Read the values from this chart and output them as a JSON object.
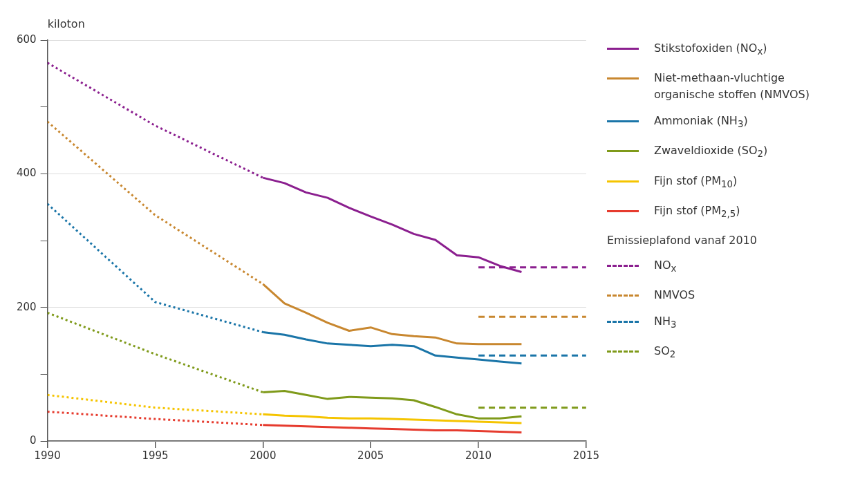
{
  "chart_data": {
    "type": "line",
    "ylabel": "kiloton",
    "xlim": [
      1990,
      2015
    ],
    "xticks": [
      1990,
      1995,
      2000,
      2005,
      2010,
      2015
    ],
    "ylim": [
      0,
      600
    ],
    "yticks": [
      0,
      {
        "value": 100,
        "label": null
      },
      200,
      {
        "value": 300,
        "label": null
      },
      400,
      {
        "value": 500,
        "label": null
      },
      600
    ],
    "grid": "y",
    "legend": "right",
    "legend_title": "Emissieplafond vanaf 2010",
    "marker": "none",
    "series": [
      {
        "name": "Stikstofoxiden (NO$_{x}$)",
        "color": "#8b1f8f",
        "line_style": "solid",
        "x": [
          2000,
          2001,
          2002,
          2003,
          2004,
          2005,
          2006,
          2007,
          2008,
          2009,
          2010,
          2011,
          2012
        ],
        "values": [
          394,
          386,
          372,
          364,
          349,
          336,
          324,
          310,
          301,
          278,
          275,
          262,
          253
        ]
      },
      {
        "name": "Niet-methaan-vluchtige organische stoffen (NMVOS)",
        "color": "#c8872f",
        "line_style": "solid",
        "x": [
          2000,
          2001,
          2002,
          2003,
          2004,
          2005,
          2006,
          2007,
          2008,
          2009,
          2010,
          2011,
          2012
        ],
        "values": [
          235,
          206,
          192,
          177,
          165,
          170,
          160,
          157,
          155,
          146,
          145,
          145,
          145
        ]
      },
      {
        "name": "Ammoniak (NH$_{3}$)",
        "color": "#1a75a8",
        "line_style": "solid",
        "x": [
          2000,
          2001,
          2002,
          2003,
          2004,
          2005,
          2006,
          2007,
          2008,
          2009,
          2010,
          2011,
          2012
        ],
        "values": [
          163,
          159,
          152,
          146,
          144,
          142,
          144,
          142,
          128,
          125,
          122,
          119,
          116
        ]
      },
      {
        "name": "Zwaveldioxide (SO$_{2}$)",
        "color": "#7f9a1a",
        "line_style": "solid",
        "x": [
          2000,
          2001,
          2002,
          2003,
          2004,
          2005,
          2006,
          2007,
          2008,
          2009,
          2010,
          2011,
          2012
        ],
        "values": [
          73,
          75,
          69,
          63,
          66,
          65,
          64,
          61,
          51,
          40,
          34,
          34,
          37
        ]
      },
      {
        "name": "Fijn stof (PM$_{10}$)",
        "color": "#f5c400",
        "line_style": "solid",
        "x": [
          2000,
          2001,
          2002,
          2003,
          2004,
          2005,
          2006,
          2007,
          2008,
          2009,
          2010,
          2011,
          2012
        ],
        "values": [
          40,
          38,
          37,
          35,
          34,
          34,
          33,
          32,
          31,
          30,
          29,
          28,
          27
        ]
      },
      {
        "name": "Fijn stof (PM$_{2,5}$)",
        "color": "#e63b2e",
        "line_style": "solid",
        "x": [
          2000,
          2001,
          2002,
          2003,
          2004,
          2005,
          2006,
          2007,
          2008,
          2009,
          2010,
          2011,
          2012
        ],
        "values": [
          24,
          23,
          22,
          21,
          20,
          19,
          18,
          17,
          16,
          16,
          15,
          14,
          13
        ]
      },
      {
        "color": "#8b1f8f",
        "line_style": "dotted",
        "x": [
          1990,
          1995,
          2000
        ],
        "values": [
          566,
          472,
          394
        ]
      },
      {
        "color": "#c8872f",
        "line_style": "dotted",
        "x": [
          1990,
          1995,
          2000
        ],
        "values": [
          478,
          338,
          235
        ]
      },
      {
        "color": "#1a75a8",
        "line_style": "dotted",
        "x": [
          1990,
          1995,
          2000
        ],
        "values": [
          355,
          208,
          163
        ]
      },
      {
        "color": "#7f9a1a",
        "line_style": "dotted",
        "x": [
          1990,
          1995,
          2000
        ],
        "values": [
          192,
          130,
          73
        ]
      },
      {
        "color": "#f5c400",
        "line_style": "dotted",
        "x": [
          1990,
          1995,
          2000
        ],
        "values": [
          69,
          50,
          40
        ]
      },
      {
        "color": "#e63b2e",
        "line_style": "dotted",
        "x": [
          1990,
          1995,
          2000
        ],
        "values": [
          44,
          33,
          24
        ]
      },
      {
        "name": "NO$_{x}$",
        "color": "#8b1f8f",
        "line_style": "dashed",
        "x": [
          2010,
          2015
        ],
        "values": [
          260,
          260
        ]
      },
      {
        "name": "NMVOS",
        "color": "#c8872f",
        "line_style": "dashed",
        "x": [
          2010,
          2015
        ],
        "values": [
          186,
          186
        ]
      },
      {
        "name": "NH$_{3}$",
        "color": "#1a75a8",
        "line_style": "dashed",
        "x": [
          2010,
          2015
        ],
        "values": [
          128,
          128
        ]
      },
      {
        "name": "SO$_{2}$",
        "color": "#7f9a1a",
        "line_style": "dashed",
        "x": [
          2010,
          2015
        ],
        "values": [
          50,
          50
        ]
      }
    ]
  }
}
